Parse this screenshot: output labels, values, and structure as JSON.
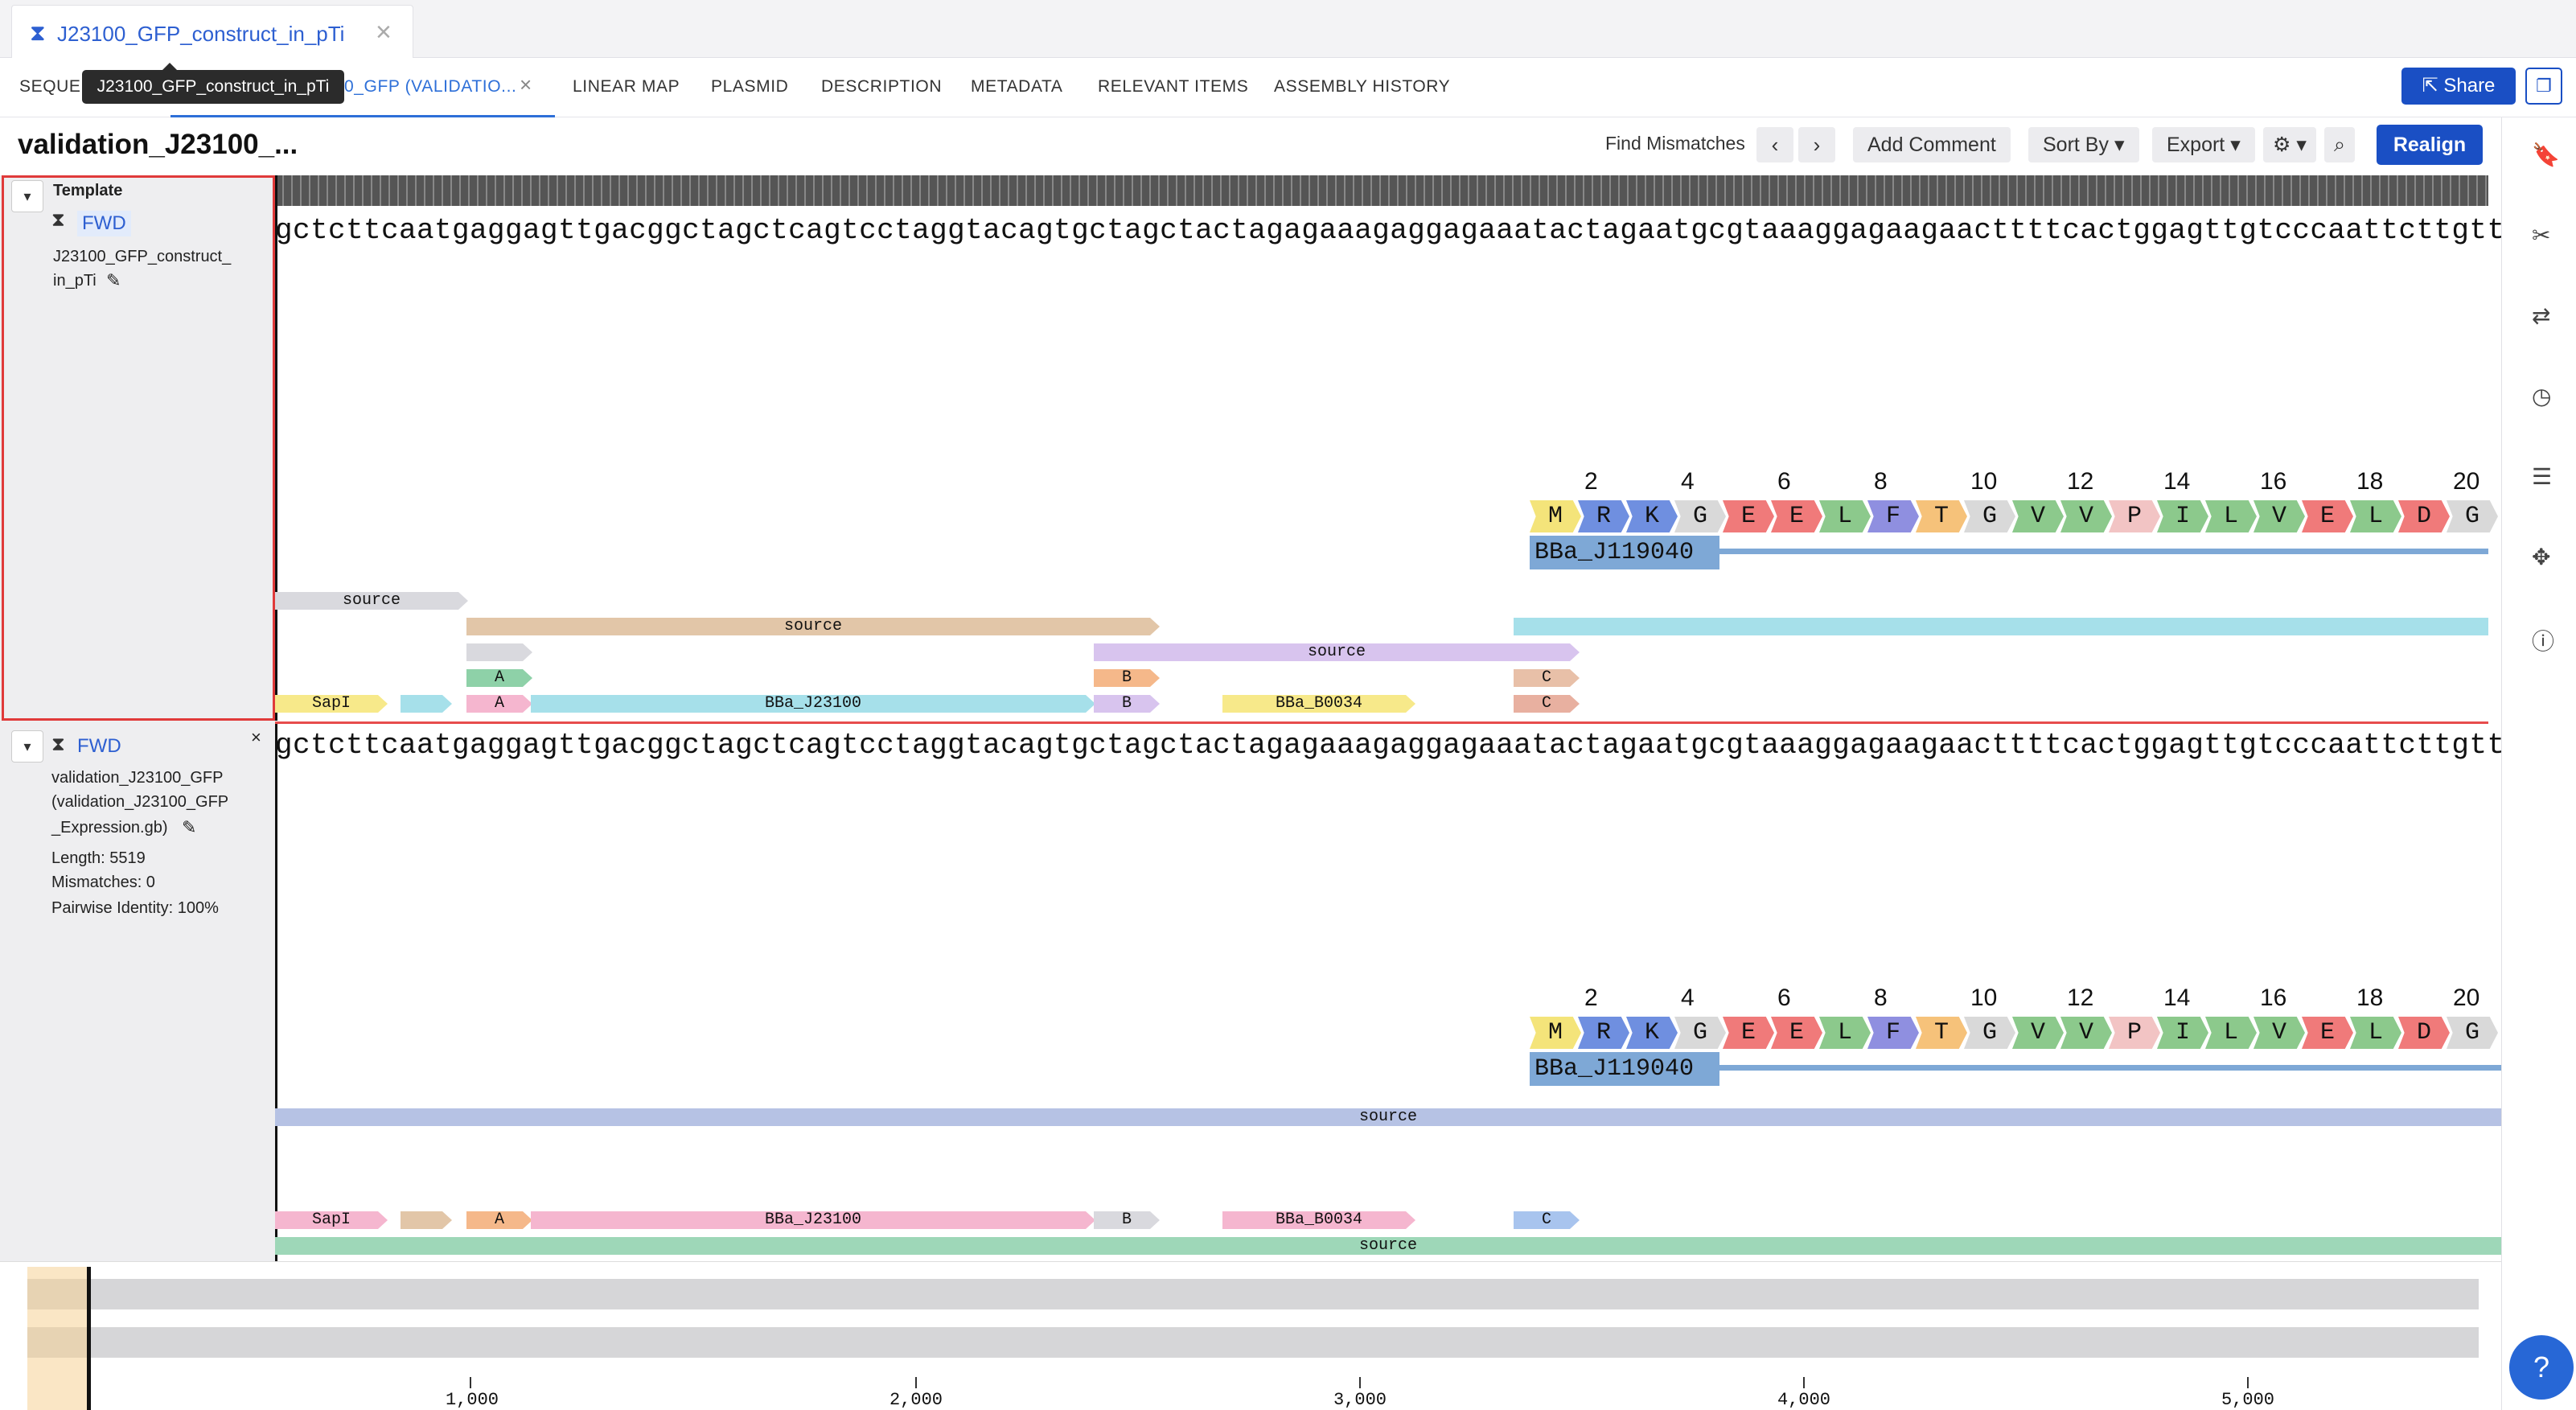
{
  "document_tab": {
    "title": "J23100_GFP_construct_in_pTi"
  },
  "tabs": [
    {
      "label": "SEQUEN"
    },
    {
      "label": "0_GFP (VALIDATIO..."
    },
    {
      "label": "LINEAR MAP"
    },
    {
      "label": "PLASMID"
    },
    {
      "label": "DESCRIPTION"
    },
    {
      "label": "METADATA"
    },
    {
      "label": "RELEVANT ITEMS"
    },
    {
      "label": "ASSEMBLY HISTORY"
    }
  ],
  "tooltip": "J23100_GFP_construct_in_pTi",
  "share_label": "Share",
  "page_title": "validation_J23100_...",
  "toolbar": {
    "find_mismatches": "Find Mismatches",
    "add_comment": "Add Comment",
    "sort_by": "Sort By",
    "export": "Export",
    "realign": "Realign"
  },
  "template_panel": {
    "heading": "Template",
    "direction": "FWD",
    "name_line1": "J23100_GFP_construct_",
    "name_line2": "in_pTi"
  },
  "read_panel": {
    "direction": "FWD",
    "name_line1": "validation_J23100_GFP",
    "name_line2": "(validation_J23100_GFP",
    "name_line3": "_Expression.gb)",
    "length": "Length: 5519",
    "mismatches": "Mismatches: 0",
    "identity": "Pairwise Identity: 100%"
  },
  "sequence": {
    "template": "gctcttcaatgaggagttgacggctagctcagtcctaggtacagtgctagctactagagaaagaggagaaatactagaatgcgtaaaggagaagaacttttcactggagttgtcccaattcttgttgaattagatggt",
    "read": "gctcttcaatgaggagttgacggctagctcagtcctaggtacagtgctagctactagagaaagaggagaaatactagaatgcgtaaaggagaagaacttttcactggagttgtcccaattcttgttgaattagatggtg"
  },
  "translation": {
    "numbers": [
      "2",
      "4",
      "6",
      "8",
      "10",
      "12",
      "14",
      "16",
      "18",
      "20"
    ],
    "residues": [
      "M",
      "R",
      "K",
      "G",
      "E",
      "E",
      "L",
      "F",
      "T",
      "G",
      "V",
      "V",
      "P",
      "I",
      "L",
      "V",
      "E",
      "L",
      "D",
      "G"
    ],
    "colors": {
      "M": "#f4e47a",
      "R": "#6f8fe0",
      "K": "#6f8fe0",
      "G": "#d9d9d9",
      "E": "#f07a7a",
      "L": "#8cc98c",
      "F": "#8f8fe0",
      "T": "#f6c27a",
      "V": "#8cc98c",
      "P": "#f2c4c4",
      "I": "#8cc98c",
      "D": "#f07a7a"
    },
    "orf_label": "BBa_J119040"
  },
  "template_features": {
    "source1": "source",
    "source2": "source",
    "source3": "source",
    "A": "A",
    "B": "B",
    "C": "C",
    "SapI": "SapI",
    "BBa_J23100": "BBa_J23100",
    "BBa_B0034": "BBa_B0034"
  },
  "read_features": {
    "source_top": "source",
    "SapI": "SapI",
    "A": "A",
    "BBa_J23100": "BBa_J23100",
    "B": "B",
    "BBa_B0034": "BBa_B0034",
    "C": "C",
    "source_bottom": "source"
  },
  "axis_labels": [
    "1,000",
    "2,000",
    "3,000",
    "4,000",
    "5,000"
  ]
}
